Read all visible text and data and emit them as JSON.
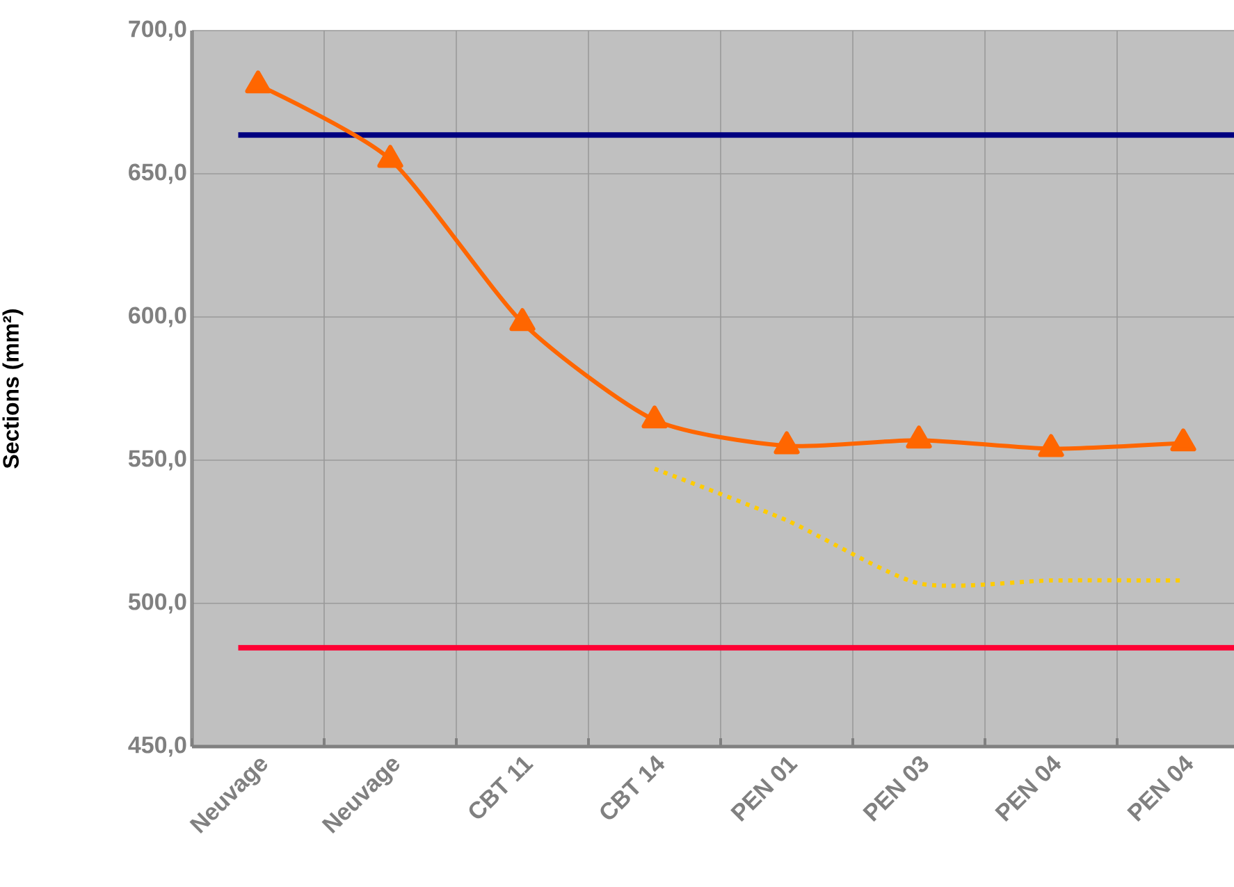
{
  "chart_data": {
    "type": "line",
    "ylabel": "Sections (mm²)",
    "categories": [
      "Neuvage",
      "Neuvage",
      "CBT 11",
      "CBT 14",
      "PEN 01",
      "PEN 03",
      "PEN 04",
      "PEN 04"
    ],
    "series": [
      {
        "color": "#ff6600",
        "values": [
          681,
          655,
          598,
          564,
          555,
          557,
          554,
          556
        ],
        "marker": "triangle",
        "line_style": "solid"
      },
      {
        "color": "#ffcc00",
        "values": [
          null,
          null,
          null,
          547,
          529,
          507,
          508,
          508
        ],
        "marker": "none",
        "line_style": "dotted"
      }
    ],
    "ylim": [
      450,
      700
    ],
    "yticks": [
      {
        "value": 450,
        "label": "450,0"
      },
      {
        "value": 500,
        "label": "500,0"
      },
      {
        "value": 550,
        "label": "550,0"
      },
      {
        "value": 600,
        "label": "600,0"
      },
      {
        "value": 650,
        "label": "650,0"
      },
      {
        "value": 700,
        "label": "700,0"
      }
    ],
    "ref_lines": [
      {
        "axis": "y",
        "value": 663.5,
        "color": "#000080"
      },
      {
        "axis": "y",
        "value": 484.5,
        "color": "#ff0033"
      }
    ],
    "grid": true
  }
}
